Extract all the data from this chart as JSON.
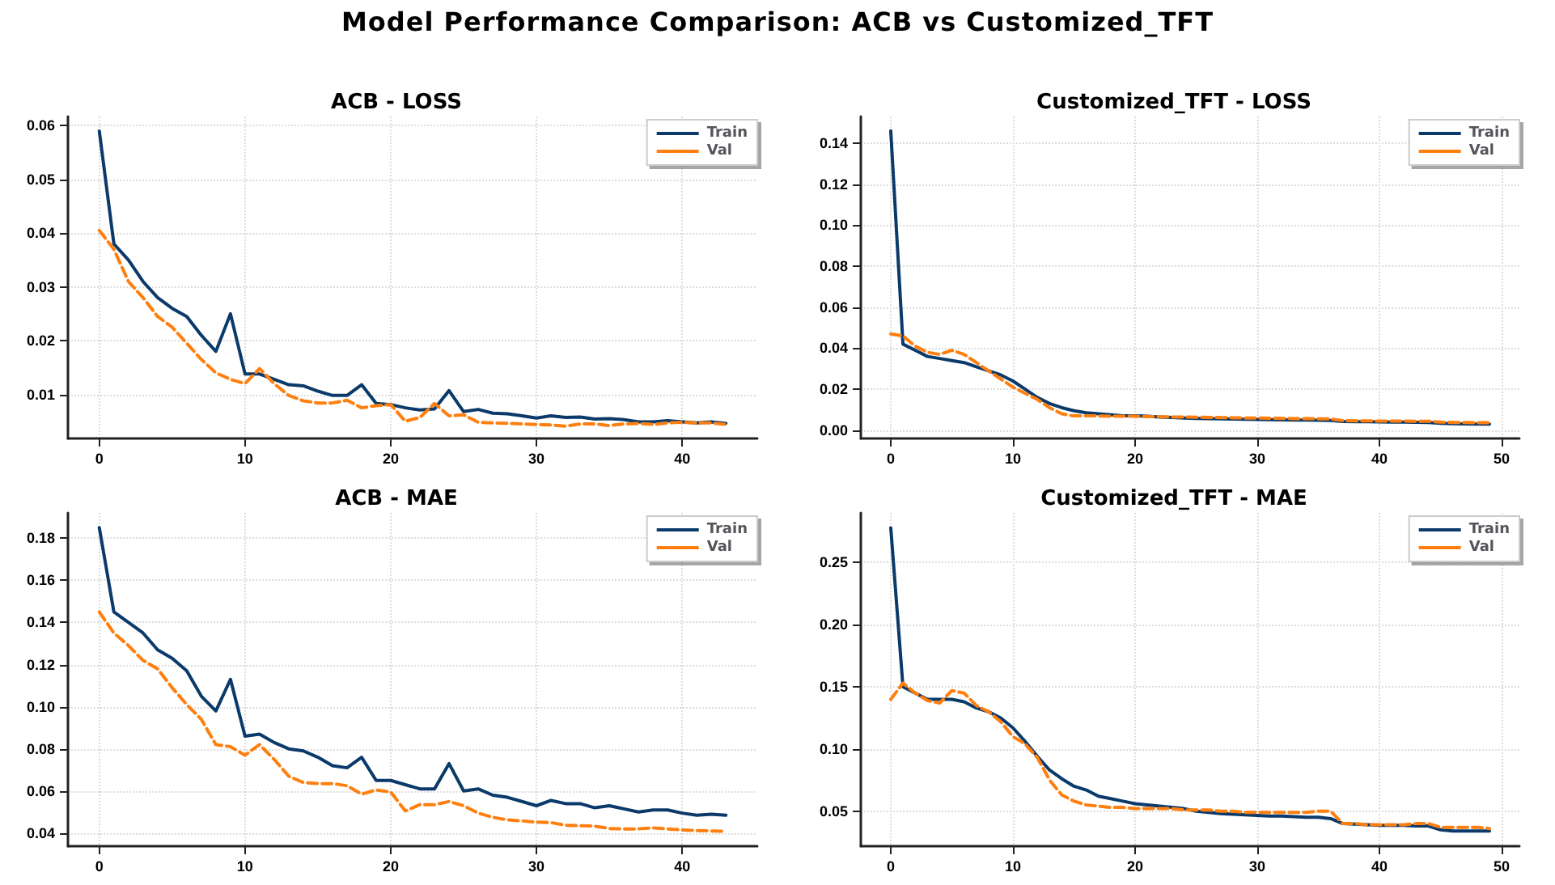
{
  "chart_data": [
    {
      "type": "other",
      "title": "Model Performance Comparison: ACB vs Customized_TFT"
    },
    {
      "type": "line",
      "title": "ACB - LOSS",
      "x": [
        0,
        1,
        2,
        3,
        4,
        5,
        6,
        7,
        8,
        9,
        10,
        11,
        12,
        13,
        14,
        15,
        16,
        17,
        18,
        19,
        20,
        21,
        22,
        23,
        24,
        25,
        26,
        27,
        28,
        29,
        30,
        31,
        32,
        33,
        34,
        35,
        36,
        37,
        38,
        39,
        40,
        41,
        42,
        43
      ],
      "xlim": [
        -2.15,
        45.15
      ],
      "xticks": [
        0,
        10,
        20,
        30,
        40
      ],
      "ylim": [
        0.0018,
        0.0617
      ],
      "yticks": [
        0.01,
        0.02,
        0.03,
        0.04,
        0.05,
        0.06
      ],
      "grid": true,
      "legend": "top right",
      "series": [
        {
          "name": "Train",
          "color": "#0b3a6a",
          "line_style": "solid",
          "values": [
            0.059,
            0.038,
            0.035,
            0.031,
            0.028,
            0.026,
            0.0245,
            0.021,
            0.018,
            0.025,
            0.0138,
            0.0138,
            0.0128,
            0.0118,
            0.0116,
            0.0106,
            0.0098,
            0.0098,
            0.0118,
            0.0083,
            0.0081,
            0.0075,
            0.0071,
            0.0073,
            0.0107,
            0.0068,
            0.0072,
            0.0065,
            0.0064,
            0.006,
            0.0056,
            0.006,
            0.0057,
            0.0058,
            0.0054,
            0.0055,
            0.0053,
            0.0049,
            0.0049,
            0.0051,
            0.0049,
            0.0047,
            0.0049,
            0.0046
          ]
        },
        {
          "name": "Val",
          "color": "#ff7f0e",
          "line_style": "dashed",
          "values": [
            0.0405,
            0.037,
            0.031,
            0.028,
            0.0245,
            0.0225,
            0.0195,
            0.0165,
            0.014,
            0.0128,
            0.012,
            0.0148,
            0.012,
            0.0098,
            0.0088,
            0.0084,
            0.0084,
            0.0089,
            0.0075,
            0.0079,
            0.0081,
            0.005,
            0.0057,
            0.0083,
            0.006,
            0.0062,
            0.0048,
            0.0047,
            0.0046,
            0.0045,
            0.0044,
            0.0043,
            0.0041,
            0.0045,
            0.0045,
            0.0042,
            0.0045,
            0.0046,
            0.0044,
            0.0047,
            0.0048,
            0.0047,
            0.0047,
            0.0044
          ]
        }
      ]
    },
    {
      "type": "line",
      "title": "Customized_TFT - LOSS",
      "x": [
        0,
        1,
        2,
        3,
        4,
        5,
        6,
        7,
        8,
        9,
        10,
        11,
        12,
        13,
        14,
        15,
        16,
        17,
        18,
        19,
        20,
        21,
        22,
        23,
        24,
        25,
        26,
        27,
        28,
        29,
        30,
        31,
        32,
        33,
        34,
        35,
        36,
        37,
        38,
        39,
        40,
        41,
        42,
        43,
        44,
        45,
        46,
        47,
        48,
        49
      ],
      "xlim": [
        -2.45,
        51.45
      ],
      "xticks": [
        0,
        10,
        20,
        30,
        40,
        50
      ],
      "ylim": [
        -0.004,
        0.153
      ],
      "yticks": [
        {
          "value": 0,
          "label": "0.00"
        },
        0.02,
        0.04,
        0.06,
        0.08,
        {
          "value": 0.1,
          "label": "0.10"
        },
        0.12,
        0.14
      ],
      "grid": true,
      "legend": "top right",
      "series": [
        {
          "name": "Train",
          "color": "#0b3a6a",
          "line_style": "solid",
          "values": [
            0.146,
            0.042,
            0.039,
            0.036,
            0.035,
            0.034,
            0.033,
            0.031,
            0.029,
            0.027,
            0.024,
            0.02,
            0.016,
            0.013,
            0.011,
            0.0095,
            0.0085,
            0.008,
            0.0075,
            0.007,
            0.007,
            0.0068,
            0.0065,
            0.0063,
            0.006,
            0.0058,
            0.0057,
            0.0056,
            0.0055,
            0.0054,
            0.0053,
            0.0052,
            0.0051,
            0.005,
            0.005,
            0.0049,
            0.0048,
            0.0043,
            0.0042,
            0.0042,
            0.0041,
            0.004,
            0.004,
            0.0039,
            0.0038,
            0.0034,
            0.0032,
            0.0031,
            0.003,
            0.003
          ]
        },
        {
          "name": "Val",
          "color": "#ff7f0e",
          "line_style": "dashed",
          "values": [
            0.047,
            0.046,
            0.041,
            0.038,
            0.037,
            0.039,
            0.037,
            0.033,
            0.029,
            0.025,
            0.021,
            0.018,
            0.015,
            0.011,
            0.008,
            0.007,
            0.007,
            0.007,
            0.0068,
            0.0068,
            0.0068,
            0.0067,
            0.0066,
            0.0065,
            0.0065,
            0.0064,
            0.0063,
            0.0062,
            0.0061,
            0.006,
            0.006,
            0.0059,
            0.0058,
            0.0057,
            0.0057,
            0.0056,
            0.0055,
            0.0047,
            0.0046,
            0.0046,
            0.0045,
            0.0045,
            0.0045,
            0.0044,
            0.0044,
            0.004,
            0.0038,
            0.0038,
            0.0037,
            0.0037
          ]
        }
      ]
    },
    {
      "type": "line",
      "title": "ACB - MAE",
      "x": [
        0,
        1,
        2,
        3,
        4,
        5,
        6,
        7,
        8,
        9,
        10,
        11,
        12,
        13,
        14,
        15,
        16,
        17,
        18,
        19,
        20,
        21,
        22,
        23,
        24,
        25,
        26,
        27,
        28,
        29,
        30,
        31,
        32,
        33,
        34,
        35,
        36,
        37,
        38,
        39,
        40,
        41,
        42,
        43
      ],
      "xlim": [
        -2.15,
        45.15
      ],
      "xticks": [
        0,
        10,
        20,
        30,
        40
      ],
      "ylim": [
        0.0338,
        0.192
      ],
      "yticks": [
        0.04,
        0.06,
        0.08,
        {
          "value": 0.1,
          "label": "0.10"
        },
        0.12,
        0.14,
        0.16,
        0.18
      ],
      "grid": true,
      "legend": "top right",
      "series": [
        {
          "name": "Train",
          "color": "#0b3a6a",
          "line_style": "solid",
          "values": [
            0.185,
            0.145,
            0.14,
            0.135,
            0.127,
            0.123,
            0.117,
            0.105,
            0.098,
            0.113,
            0.086,
            0.087,
            0.083,
            0.08,
            0.079,
            0.076,
            0.072,
            0.071,
            0.076,
            0.065,
            0.065,
            0.063,
            0.061,
            0.061,
            0.073,
            0.06,
            0.061,
            0.058,
            0.057,
            0.055,
            0.053,
            0.0555,
            0.054,
            0.054,
            0.052,
            0.053,
            0.0515,
            0.05,
            0.051,
            0.051,
            0.0495,
            0.0485,
            0.049,
            0.0485
          ]
        },
        {
          "name": "Val",
          "color": "#ff7f0e",
          "line_style": "dashed",
          "values": [
            0.145,
            0.135,
            0.129,
            0.122,
            0.118,
            0.109,
            0.101,
            0.094,
            0.082,
            0.081,
            0.077,
            0.082,
            0.075,
            0.067,
            0.064,
            0.0635,
            0.0635,
            0.0625,
            0.0585,
            0.0605,
            0.0595,
            0.0505,
            0.0535,
            0.0535,
            0.055,
            0.053,
            0.0495,
            0.0475,
            0.0463,
            0.0458,
            0.0452,
            0.045,
            0.0437,
            0.0435,
            0.0433,
            0.0422,
            0.042,
            0.042,
            0.0425,
            0.042,
            0.0415,
            0.0412,
            0.041,
            0.0408
          ]
        }
      ]
    },
    {
      "type": "line",
      "title": "Customized_TFT - MAE",
      "x": [
        0,
        1,
        2,
        3,
        4,
        5,
        6,
        7,
        8,
        9,
        10,
        11,
        12,
        13,
        14,
        15,
        16,
        17,
        18,
        19,
        20,
        21,
        22,
        23,
        24,
        25,
        26,
        27,
        28,
        29,
        30,
        31,
        32,
        33,
        34,
        35,
        36,
        37,
        38,
        39,
        40,
        41,
        42,
        43,
        44,
        45,
        46,
        47,
        48,
        49
      ],
      "xlim": [
        -2.45,
        51.45
      ],
      "xticks": [
        0,
        10,
        20,
        30,
        40,
        50
      ],
      "ylim": [
        0.0218,
        0.29
      ],
      "yticks": [
        0.05,
        {
          "value": 0.1,
          "label": "0.10"
        },
        0.15,
        {
          "value": 0.2,
          "label": "0.20"
        },
        0.25
      ],
      "grid": true,
      "legend": "top right",
      "series": [
        {
          "name": "Train",
          "color": "#0b3a6a",
          "line_style": "solid",
          "values": [
            0.278,
            0.15,
            0.145,
            0.14,
            0.14,
            0.14,
            0.138,
            0.133,
            0.13,
            0.125,
            0.117,
            0.106,
            0.094,
            0.083,
            0.076,
            0.07,
            0.067,
            0.062,
            0.06,
            0.058,
            0.056,
            0.055,
            0.054,
            0.053,
            0.052,
            0.05,
            0.049,
            0.048,
            0.0475,
            0.047,
            0.0465,
            0.046,
            0.046,
            0.0455,
            0.045,
            0.045,
            0.044,
            0.04,
            0.0395,
            0.039,
            0.0385,
            0.0385,
            0.0385,
            0.038,
            0.038,
            0.035,
            0.034,
            0.034,
            0.034,
            0.034
          ]
        },
        {
          "name": "Val",
          "color": "#ff7f0e",
          "line_style": "dashed",
          "values": [
            0.14,
            0.153,
            0.145,
            0.139,
            0.137,
            0.147,
            0.145,
            0.135,
            0.13,
            0.122,
            0.11,
            0.104,
            0.093,
            0.075,
            0.063,
            0.058,
            0.055,
            0.054,
            0.053,
            0.053,
            0.052,
            0.052,
            0.052,
            0.052,
            0.051,
            0.051,
            0.051,
            0.05,
            0.05,
            0.049,
            0.049,
            0.049,
            0.049,
            0.049,
            0.049,
            0.05,
            0.05,
            0.04,
            0.04,
            0.039,
            0.039,
            0.039,
            0.039,
            0.04,
            0.04,
            0.037,
            0.037,
            0.037,
            0.037,
            0.036
          ]
        }
      ]
    }
  ]
}
